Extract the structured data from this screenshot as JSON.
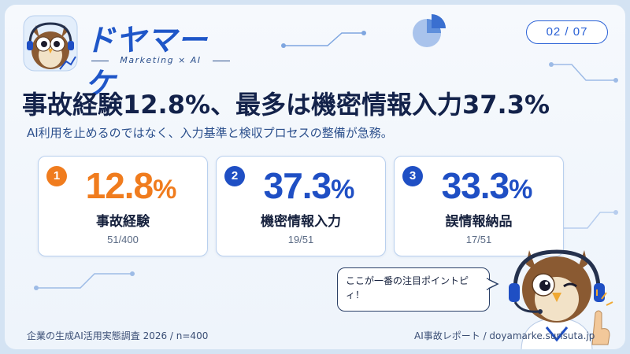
{
  "brand": {
    "name": "ドヤマーケ",
    "tagline": "Marketing × AI"
  },
  "page_indicator": "02 / 07",
  "headline": "事故経験12.8%、最多は機密情報入力37.3%",
  "subheadline": "AI利用を止めるのではなく、入力基準と検収プロセスの整備が急務。",
  "cards": [
    {
      "rank": "1",
      "value": "12.8",
      "unit": "%",
      "label": "事故経験",
      "fraction": "51/400",
      "accent": "#f07c1e"
    },
    {
      "rank": "2",
      "value": "37.3",
      "unit": "%",
      "label": "機密情報入力",
      "fraction": "19/51",
      "accent": "#1f4fc4"
    },
    {
      "rank": "3",
      "value": "33.3",
      "unit": "%",
      "label": "誤情報納品",
      "fraction": "17/51",
      "accent": "#1f4fc4"
    }
  ],
  "speech_bubble": "ここが一番の注目ポイントピィ！",
  "footer": {
    "source": "企業の生成AI活用実態調査 2026 / n=400",
    "site": "AI事故レポート / doyamarke.surisuta.jp"
  },
  "colors": {
    "primary": "#1f4fc4",
    "accent_orange": "#f07c1e",
    "text_dark": "#13224a",
    "card_border": "#b9d0ee"
  },
  "icons": [
    "owl-mascot-icon",
    "pie-chart-icon",
    "circuit-line-icon",
    "pointing-hand-icon"
  ]
}
